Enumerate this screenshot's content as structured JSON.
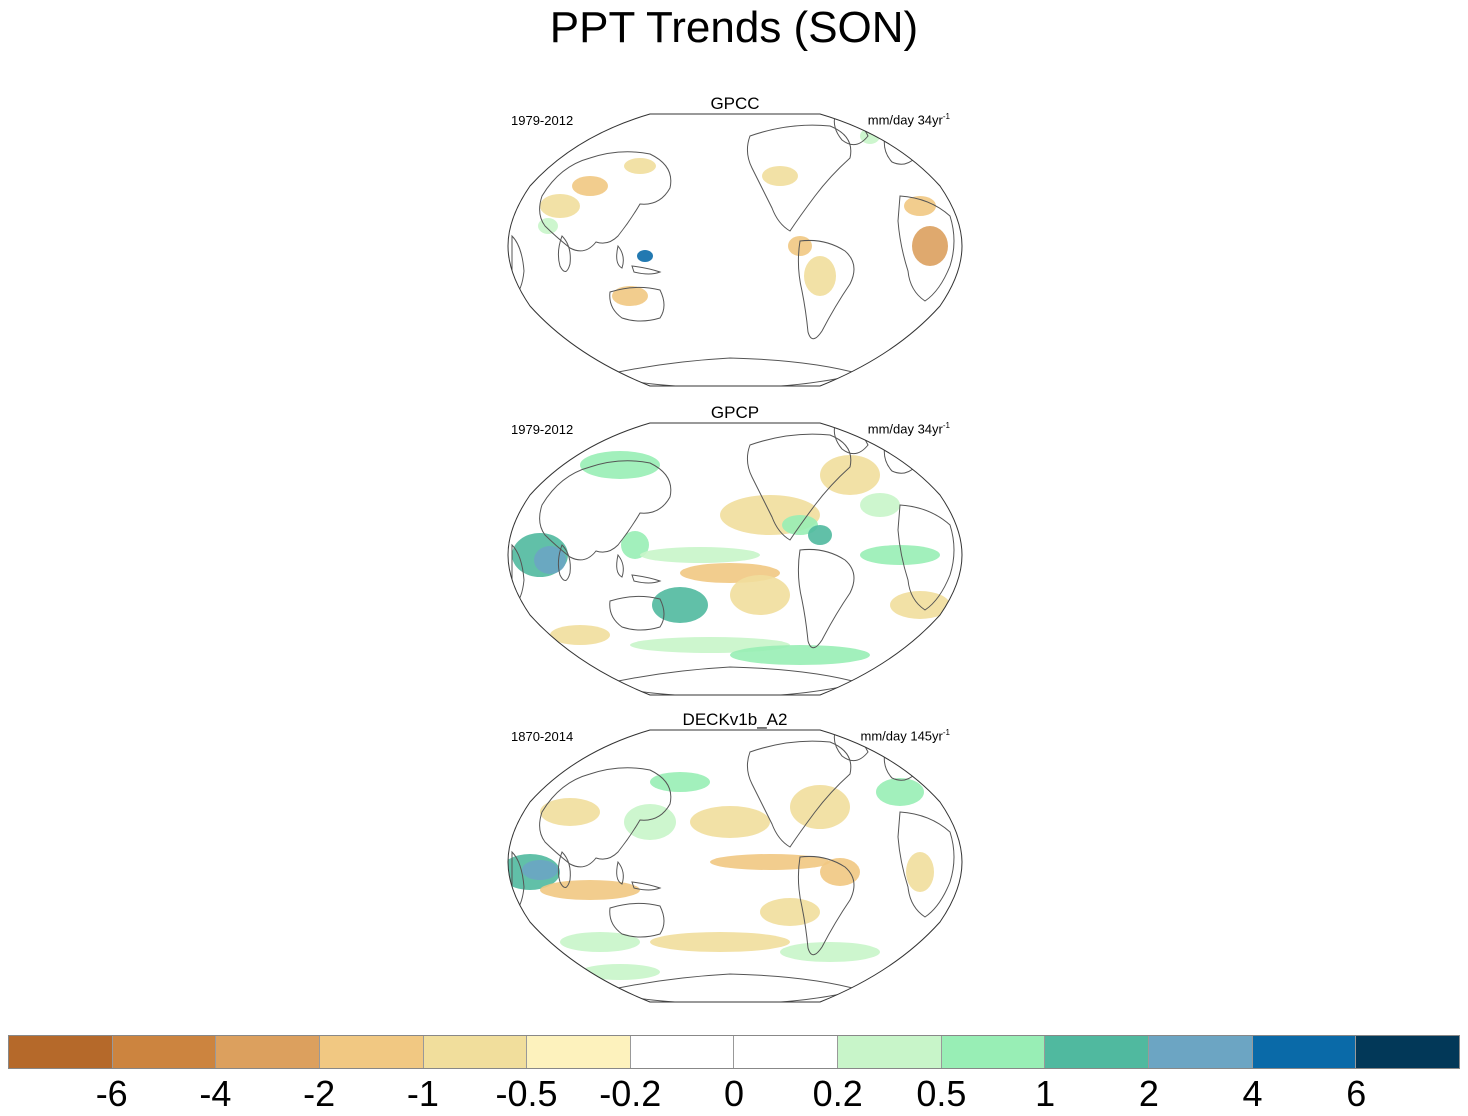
{
  "title": "PPT Trends (SON)",
  "panels": [
    {
      "title": "GPCC",
      "period": "1979-2012",
      "units": "mm/day 34yr",
      "units_sup": "-1",
      "pattern": "gpcc"
    },
    {
      "title": "GPCP",
      "period": "1979-2012",
      "units": "mm/day 34yr",
      "units_sup": "-1",
      "pattern": "gpcp"
    },
    {
      "title": "DECKv1b_A2",
      "period": "1870-2014",
      "units": "mm/day 145yr",
      "units_sup": "-1",
      "pattern": "deck"
    }
  ],
  "colorbar": {
    "colors": [
      "#b5692a",
      "#cc843f",
      "#dca05e",
      "#f1c882",
      "#f1de9c",
      "#fdf2bd",
      "#ffffff",
      "#ffffff",
      "#c8f5c9",
      "#98eeb5",
      "#50b99f",
      "#6ca5c3",
      "#0a6aa8",
      "#023858"
    ],
    "labels": [
      "-6",
      "-4",
      "-2",
      "-1",
      "-0.5",
      "-0.2",
      "0",
      "0.2",
      "0.5",
      "1",
      "2",
      "4",
      "6"
    ]
  }
}
